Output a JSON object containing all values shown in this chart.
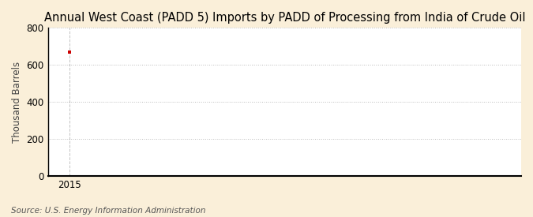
{
  "title": "Annual West Coast (PADD 5) Imports by PADD of Processing from India of Crude Oil",
  "ylabel": "Thousand Barrels",
  "source": "Source: U.S. Energy Information Administration",
  "x_data": [
    2015
  ],
  "y_data": [
    670
  ],
  "point_color": "#cc0000",
  "ylim": [
    0,
    800
  ],
  "yticks": [
    0,
    200,
    400,
    600,
    800
  ],
  "xlim": [
    2014.5,
    2025.5
  ],
  "xticks": [
    2015
  ],
  "background_color": "#faefd9",
  "plot_bg_color": "#ffffff",
  "grid_color": "#bbbbbb",
  "axis_color": "#000000",
  "title_fontsize": 10.5,
  "label_fontsize": 8.5,
  "tick_fontsize": 8.5,
  "source_fontsize": 7.5
}
